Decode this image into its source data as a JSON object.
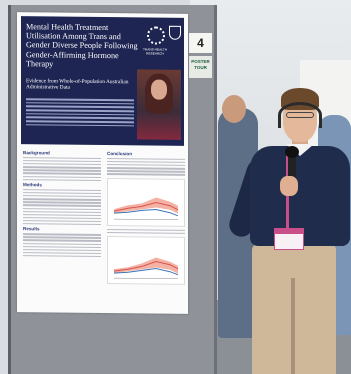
{
  "board": {
    "number": "4",
    "tag_line1": "POSTER",
    "tag_line2": "TOUR"
  },
  "poster": {
    "title": "Mental Health Treatment Utilisation Among Trans and Gender Diverse People Following Gender-Affirming Hormone Therapy",
    "subtitle": "Evidence from Whole-of-Population Australian Administrative Data",
    "logo_text": "TRANS HEALTH RESEARCH",
    "sections": {
      "background": "Background",
      "methods": "Methods",
      "results": "Results",
      "conclusion": "Conclusion"
    }
  }
}
